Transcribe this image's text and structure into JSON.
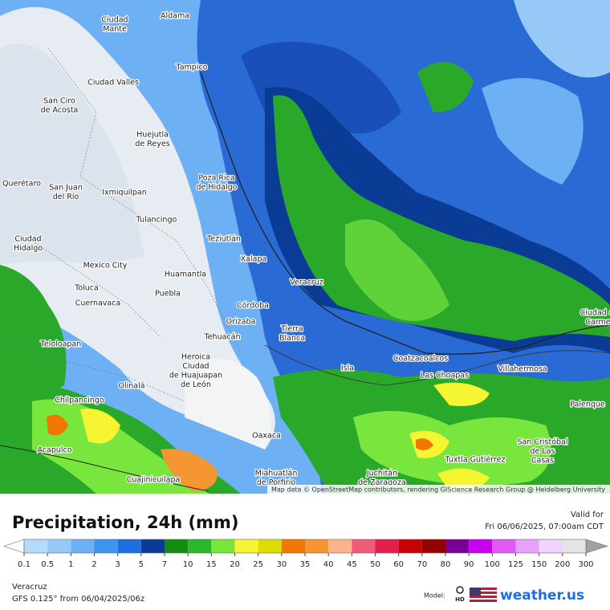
{
  "map": {
    "cities": [
      [
        "Ciudad",
        "Mante"
      ],
      [
        "Aldama"
      ],
      [
        "Tampico"
      ],
      [
        "Ciudad Valles"
      ],
      [
        "San Ciro",
        "de Acosta"
      ],
      [
        "Huejutla",
        "de Reyes"
      ],
      [
        "Poza Rica",
        "de Hidalgo"
      ],
      [
        "Querétaro"
      ],
      [
        "San Juan",
        "del Río"
      ],
      [
        "Ixmiquilpan"
      ],
      [
        "Tulancingo"
      ],
      [
        "Teziutlán"
      ],
      [
        "Xalapa"
      ],
      [
        "Ciudad",
        "Hidalgo"
      ],
      [
        "Mexico City"
      ],
      [
        "Huamantla"
      ],
      [
        "Veracruz"
      ],
      [
        "Toluca"
      ],
      [
        "Puebla"
      ],
      [
        "Cuernavaca"
      ],
      [
        "Córdoba"
      ],
      [
        "Orizaba"
      ],
      [
        "Tehuacán"
      ],
      [
        "Tierra",
        "Blanca"
      ],
      [
        "Teloloapan"
      ],
      [
        "Heroica",
        "Ciudad",
        "de Huajuapan",
        "de León"
      ],
      [
        "Coatzacoalcos"
      ],
      [
        "Las Choapas"
      ],
      [
        "Villahermosa"
      ],
      [
        "Isla"
      ],
      [
        "Olinalá"
      ],
      [
        "Chilpancingo"
      ],
      [
        "Acapulco"
      ],
      [
        "Cuajinicuilapa"
      ],
      [
        "Oaxaca"
      ],
      [
        "Miahuatlán",
        "de Porfirio"
      ],
      [
        "Juchitán",
        "de Zaragoza"
      ],
      [
        "Tuxtla Gutiérrez"
      ],
      [
        "San Cristóbal",
        "de Las",
        "Casas"
      ],
      [
        "Palenque"
      ],
      [
        "Ciudad del",
        "Carmen"
      ]
    ],
    "attribution": "Map data © OpenStreetMap contributors, rendering GIScience Research Group @ Heidelberg University"
  },
  "header": {
    "title": "Precipitation, 24h (mm)",
    "valid_label": "Valid for",
    "valid_time": "Fri 06/06/2025, 07:00am CDT"
  },
  "legend": {
    "values": [
      0.1,
      0.5,
      1,
      2,
      3,
      5,
      7,
      10,
      15,
      20,
      25,
      30,
      35,
      40,
      45,
      50,
      60,
      70,
      80,
      90,
      100,
      125,
      150,
      200,
      300
    ],
    "colors": [
      "#b4dcfa",
      "#96c8f8",
      "#6eb0f4",
      "#3c96f0",
      "#1e6ee0",
      "#0a3c96",
      "#148c14",
      "#2ab82a",
      "#78e63c",
      "#f5f532",
      "#dcdc00",
      "#f07800",
      "#f59632",
      "#fab48c",
      "#f05a78",
      "#e61e50",
      "#c80000",
      "#960000",
      "#780096",
      "#c800f0",
      "#e15af5",
      "#e8a0f8",
      "#f0d2fa",
      "#e4e4e4"
    ],
    "below_color": "#ffffff",
    "above_color": "#a0a0a0"
  },
  "footer": {
    "region": "Veracruz",
    "model_run": "GFS 0.125° from  06/04/2025/06z",
    "model_label": "Model:",
    "hd": "HD",
    "brand": "weather.us"
  }
}
